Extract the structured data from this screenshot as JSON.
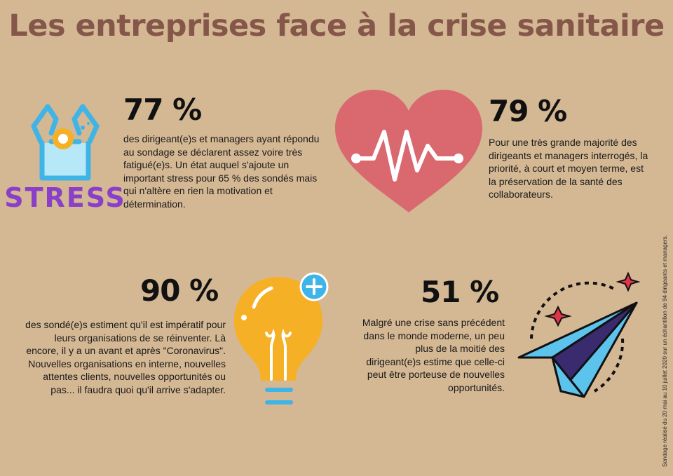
{
  "title": "Les entreprises face à la crise sanitaire",
  "stats": [
    {
      "value": "77 %",
      "text": "des dirigeant(e)s et managers ayant répondu au sondage se déclarent assez voire très fatigué(e)s. Un état auquel s'ajoute un important stress pour 65 % des sondés mais qui n'altère en rien la motivation et détermination.",
      "icon": "stress-person-icon",
      "icon_label": "STRESS"
    },
    {
      "value": "79 %",
      "text": "Pour une très grande majorité des dirigeants et managers interrogés, la priorité, à court et moyen terme, est la préservation de la santé des collaborateurs.",
      "icon": "heart-pulse-icon"
    },
    {
      "value": "90 %",
      "text": "des sondé(e)s estiment qu'il est impératif pour leurs organisations de se réinventer. Là encore, il y a un avant et après \"Coronavirus\". Nouvelles organisations en interne, nouvelles attentes clients, nouvelles opportunités ou pas... il faudra quoi qu'il arrive s'adapter.",
      "icon": "lightbulb-plus-icon"
    },
    {
      "value": "51 %",
      "text": "Malgré une crise sans précédent dans le monde moderne, un peu plus de la moitié des dirigeant(e)s estime que celle-ci peut être porteuse de nouvelles opportunités.",
      "icon": "paper-plane-icon"
    }
  ],
  "footnote": "Sondage réalisé du 20 mai au 10 juillet 2020 sur un échantillon de 94 dirigeants et managers.",
  "colors": {
    "background": "#d4b793",
    "title": "#85574a",
    "heart": "#d9686f",
    "bulb": "#f5b025",
    "stress_text": "#8a3fc9",
    "blue": "#5cc3ec"
  }
}
